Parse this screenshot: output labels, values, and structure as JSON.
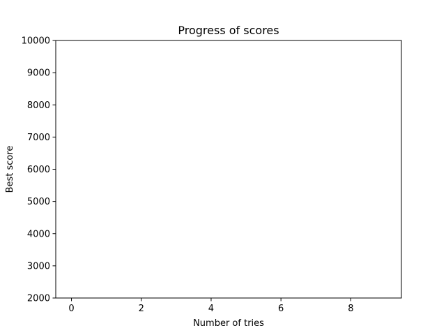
{
  "chart_data": {
    "type": "line",
    "title": "Progress of scores",
    "xlabel": "Number of tries",
    "ylabel": "Best score",
    "xlim": [
      -0.45,
      9.45
    ],
    "ylim": [
      2000,
      10000
    ],
    "x_ticks": [
      0,
      2,
      4,
      6,
      8
    ],
    "y_ticks": [
      2000,
      3000,
      4000,
      5000,
      6000,
      7000,
      8000,
      9000,
      10000
    ],
    "grid": false,
    "series": []
  }
}
